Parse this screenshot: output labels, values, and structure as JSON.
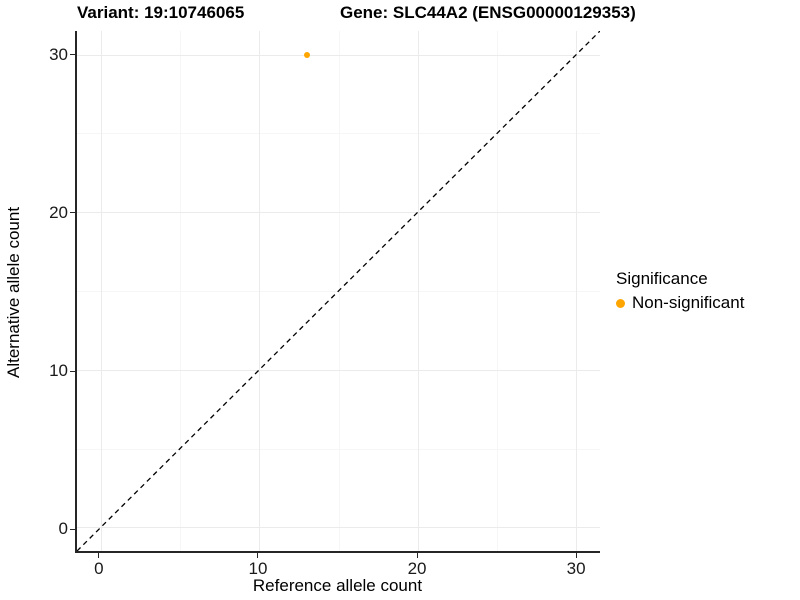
{
  "chart_data": {
    "type": "scatter",
    "title_left": "Variant: 19:10746065",
    "title_right": "Gene: SLC44A2 (ENSG00000129353)",
    "xlabel": "Reference allele count",
    "ylabel": "Alternative allele count",
    "xlim": [
      -1.5,
      31.5
    ],
    "ylim": [
      -1.5,
      31.5
    ],
    "xticks": [
      0,
      10,
      20,
      30
    ],
    "yticks": [
      0,
      10,
      20,
      30
    ],
    "xticks_minor": [
      5,
      15,
      25
    ],
    "yticks_minor": [
      5,
      15,
      25
    ],
    "grid": "major+minor",
    "points": [
      {
        "x": 13,
        "y": 30,
        "series": "Non-significant"
      }
    ],
    "identity_line": {
      "from": [
        -1.5,
        -1.5
      ],
      "to": [
        31.5,
        31.5
      ],
      "style": "dashed",
      "color": "#000000"
    },
    "legend": {
      "title": "Significance",
      "position": "right",
      "items": [
        {
          "label": "Non-significant",
          "color": "#FFA500"
        }
      ]
    },
    "colors": {
      "point": "#FFA500",
      "axis_line": "#262626",
      "grid_major": "#ebebeb",
      "grid_minor": "#f6f6f6",
      "text": "#000000"
    }
  }
}
